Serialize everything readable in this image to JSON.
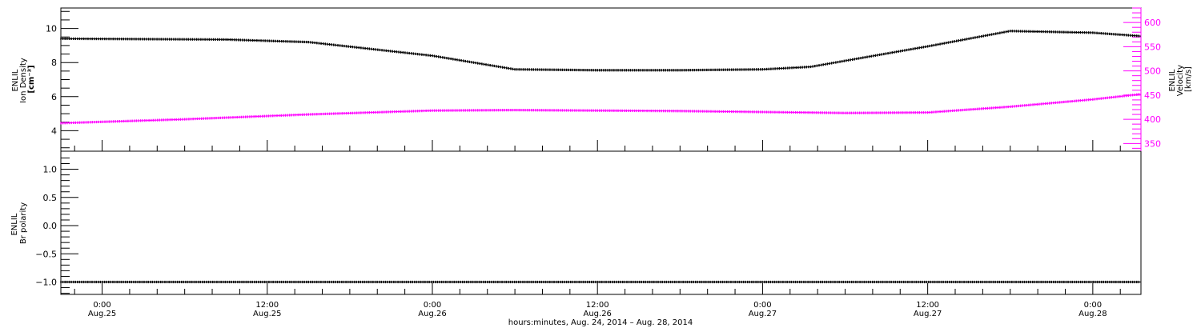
{
  "chart_data": [
    {
      "type": "line",
      "panel": "top",
      "ylabel_lines": [
        "ENLIL",
        "Ion Density",
        "[cm^-3]"
      ],
      "ylabel_html": "[cm⁻³]",
      "y2label_lines": [
        "ENLIL",
        "Velocity",
        "[km/s]"
      ],
      "ylim": [
        2.8,
        11.2
      ],
      "y2lim": [
        334,
        630
      ],
      "yticks": [
        4,
        6,
        8,
        10
      ],
      "y2ticks": [
        350,
        400,
        450,
        500,
        550,
        600
      ],
      "grid": false,
      "series": [
        {
          "axis": "left",
          "color": "#000000",
          "marker": "dots",
          "x": [
            "2014-08-24T21:00",
            "2014-08-25T09:00",
            "2014-08-25T15:00",
            "2014-08-26T00:00",
            "2014-08-26T06:00",
            "2014-08-26T12:00",
            "2014-08-26T18:00",
            "2014-08-27T00:00",
            "2014-08-27T03:30",
            "2014-08-27T12:00",
            "2014-08-27T18:00",
            "2014-08-28T00:00",
            "2014-08-28T03:30"
          ],
          "y": [
            9.4,
            9.35,
            9.2,
            8.4,
            7.6,
            7.55,
            7.55,
            7.6,
            7.75,
            8.95,
            9.85,
            9.75,
            9.55
          ]
        },
        {
          "axis": "right",
          "color": "#ff00ff",
          "marker": "dots",
          "x": [
            "2014-08-24T21:00",
            "2014-08-25T06:00",
            "2014-08-25T15:00",
            "2014-08-26T00:00",
            "2014-08-26T06:00",
            "2014-08-26T12:00",
            "2014-08-26T18:00",
            "2014-08-27T00:00",
            "2014-08-27T06:00",
            "2014-08-27T12:00",
            "2014-08-27T18:00",
            "2014-08-28T00:00",
            "2014-08-28T03:30"
          ],
          "y": [
            392,
            400,
            410,
            418,
            419,
            418,
            417,
            415,
            413,
            414,
            426,
            441,
            452
          ]
        }
      ]
    },
    {
      "type": "line",
      "panel": "bottom",
      "ylabel_lines": [
        "ENLIL",
        "Br polarity"
      ],
      "ylim": [
        -1.22,
        1.32
      ],
      "yticks": [
        -1.0,
        -0.5,
        0.0,
        0.5,
        1.0
      ],
      "yticklabels": [
        "−1.0",
        "−0.5",
        "0.0",
        "0.5",
        "1.0"
      ],
      "grid": false,
      "series": [
        {
          "color": "#000000",
          "marker": "dots",
          "x": [
            "2014-08-24T21:00",
            "2014-08-28T03:30"
          ],
          "y": [
            -1,
            -1
          ]
        }
      ]
    }
  ],
  "xaxis": {
    "xlim": [
      "2014-08-24T21:00",
      "2014-08-28T03:30"
    ],
    "ticks": [
      {
        "t": "2014-08-25T00:00",
        "time": "0:00",
        "date": "Aug.25"
      },
      {
        "t": "2014-08-25T12:00",
        "time": "12:00",
        "date": "Aug.25"
      },
      {
        "t": "2014-08-26T00:00",
        "time": "0:00",
        "date": "Aug.26"
      },
      {
        "t": "2014-08-26T12:00",
        "time": "12:00",
        "date": "Aug.26"
      },
      {
        "t": "2014-08-27T00:00",
        "time": "0:00",
        "date": "Aug.27"
      },
      {
        "t": "2014-08-27T12:00",
        "time": "12:00",
        "date": "Aug.27"
      },
      {
        "t": "2014-08-28T00:00",
        "time": "0:00",
        "date": "Aug.28"
      }
    ],
    "minor_tick_hours": 2,
    "xlabel": "hours:minutes, Aug. 24, 2014 – Aug. 28, 2014"
  },
  "colors": {
    "density": "#000000",
    "velocity": "#ff00ff",
    "polarity": "#000000",
    "axes": "#000000"
  }
}
